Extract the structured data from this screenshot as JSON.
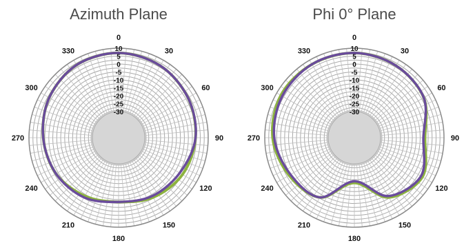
{
  "chart_data": [
    {
      "type": "polar-line",
      "title": "Azimuth Plane",
      "angle_labels": [
        "0",
        "30",
        "60",
        "90",
        "120",
        "150",
        "180",
        "210",
        "240",
        "270",
        "300",
        "330"
      ],
      "radial_labels": [
        "10",
        "5",
        "0",
        "-5",
        "-10",
        "-15",
        "-20",
        "-25",
        "-30"
      ],
      "rlim": [
        -30,
        10
      ],
      "grid": true,
      "angles": [
        0,
        30,
        60,
        90,
        120,
        150,
        180,
        210,
        240,
        270,
        300,
        330
      ],
      "series": [
        {
          "color": "#8db33f",
          "values": [
            7,
            6,
            4,
            2,
            0,
            -3,
            -6,
            -4,
            -1,
            1,
            4,
            6.5
          ]
        },
        {
          "color": "#6a4c9c",
          "values": [
            7,
            6,
            4,
            2,
            -2,
            -4,
            -6,
            -3,
            -1,
            1,
            4,
            6.5
          ]
        }
      ]
    },
    {
      "type": "polar-line",
      "title": "Phi 0° Plane",
      "angle_labels": [
        "0",
        "30",
        "60",
        "90",
        "120",
        "150",
        "180",
        "210",
        "240",
        "270",
        "300",
        "330"
      ],
      "radial_labels": [
        "10",
        "5",
        "0",
        "-5",
        "-10",
        "-15",
        "-20",
        "-25",
        "-30"
      ],
      "rlim": [
        -30,
        10
      ],
      "grid": true,
      "angles": [
        0,
        30,
        60,
        90,
        120,
        150,
        180,
        210,
        240,
        270,
        300,
        330
      ],
      "series": [
        {
          "color": "#8db33f",
          "values": [
            7,
            6,
            4,
            -2,
            3,
            -3,
            -18,
            -3,
            1,
            5,
            7,
            7
          ]
        },
        {
          "color": "#6a4c9c",
          "values": [
            7,
            6,
            4,
            -3,
            2,
            -4,
            -19,
            -3,
            0,
            4,
            6,
            7
          ]
        }
      ]
    }
  ]
}
